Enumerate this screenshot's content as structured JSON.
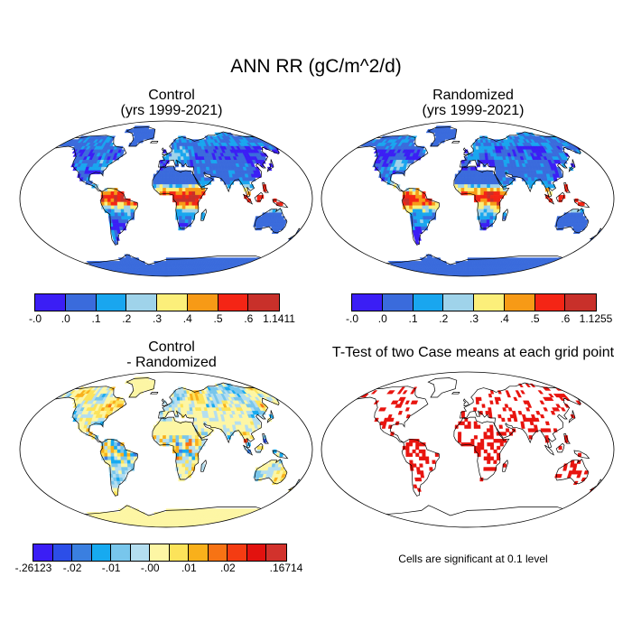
{
  "main_title": "ANN RR (gC/m^2/d)",
  "panels": {
    "control": {
      "title_line1": "Control",
      "title_line2": "(yrs 1999-2021)"
    },
    "randomized": {
      "title_line1": "Randomized",
      "title_line2": "(yrs 1999-2021)"
    },
    "difference": {
      "title_line1": "Control",
      "title_line2": "- Randomized"
    },
    "ttest": {
      "title": "T-Test of two Case means at each grid point",
      "note": "Cells are significant at 0.1 level"
    }
  },
  "colorbars": {
    "control": {
      "colors": [
        "#3b1ef5",
        "#3a6bdc",
        "#19a6ef",
        "#9fd3ea",
        "#fcef7a",
        "#f79a16",
        "#f42515",
        "#c8302a"
      ],
      "labels": [
        "-.0",
        ".0",
        ".1",
        ".2",
        ".3",
        ".4",
        ".5",
        ".6",
        "1.1411"
      ]
    },
    "randomized": {
      "colors": [
        "#3b1ef5",
        "#3a6bdc",
        "#19a6ef",
        "#9fd3ea",
        "#fcef7a",
        "#f79a16",
        "#f42515",
        "#c8302a"
      ],
      "labels": [
        "-.0",
        ".0",
        ".1",
        ".2",
        ".3",
        ".4",
        ".5",
        ".6",
        "1.1255"
      ]
    },
    "difference": {
      "colors": [
        "#3b1ef5",
        "#2c4ee8",
        "#3a7fe0",
        "#17aaf0",
        "#78c6ec",
        "#b4def0",
        "#fdf6a4",
        "#fce35a",
        "#f9b01b",
        "#f77314",
        "#f43c12",
        "#e2120f",
        "#d2322c"
      ],
      "labels": [
        "-.26123",
        "-.02",
        "-.01",
        "-.00",
        ".01",
        ".02",
        ".16714"
      ]
    }
  }
}
